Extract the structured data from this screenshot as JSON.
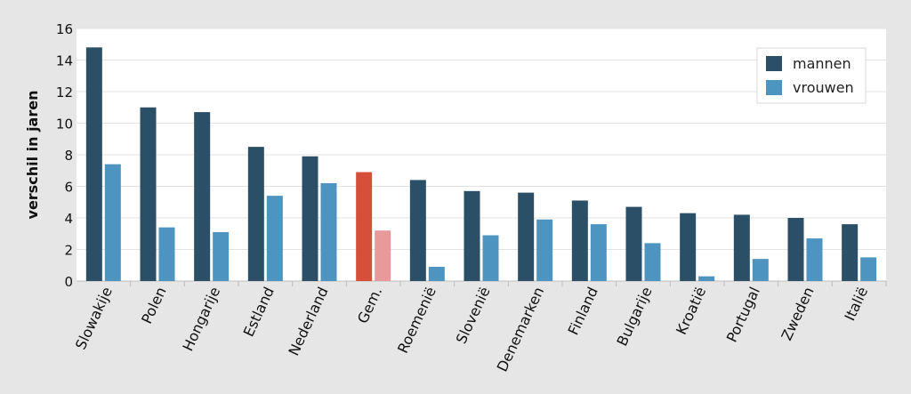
{
  "chart_data": {
    "type": "bar",
    "title": "",
    "xlabel": "",
    "ylabel": "verschil in jaren",
    "ylim": [
      0,
      16
    ],
    "yticks": [
      0,
      2,
      4,
      6,
      8,
      10,
      12,
      14,
      16
    ],
    "grid": true,
    "legend_position": "top-right",
    "categories": [
      "Slowakije",
      "Polen",
      "Hongarije",
      "Estland",
      "Nederland",
      "Gem.",
      "Roemenië",
      "Slovenië",
      "Denemarken",
      "Finland",
      "Bulgarije",
      "Kroatië",
      "Portugal",
      "Zweden",
      "Italië"
    ],
    "highlight_category": "Gem.",
    "series": [
      {
        "name": "mannen",
        "color": "#2b4f66",
        "highlight_color": "#d64f3a",
        "values": [
          14.8,
          11.0,
          10.7,
          8.5,
          7.9,
          6.9,
          6.4,
          5.7,
          5.6,
          5.1,
          4.7,
          4.3,
          4.2,
          4.0,
          3.6
        ]
      },
      {
        "name": "vrouwen",
        "color": "#4d94c1",
        "highlight_color": "#e89a9a",
        "values": [
          7.4,
          3.4,
          3.1,
          5.4,
          6.2,
          3.2,
          0.9,
          2.9,
          3.9,
          3.6,
          2.4,
          0.3,
          1.4,
          2.7,
          1.5
        ]
      }
    ]
  }
}
